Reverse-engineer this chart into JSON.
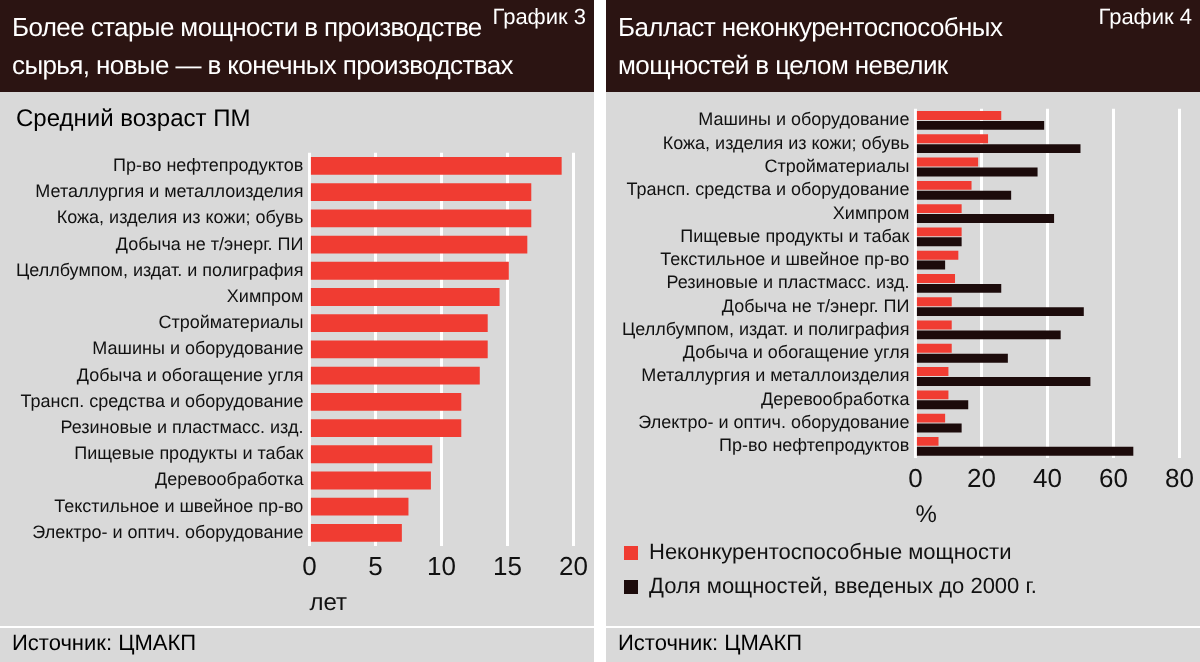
{
  "chart_data": [
    {
      "type": "bar",
      "orientation": "horizontal",
      "title": "Более старые мощности в производстве сырья, новые — в конечных производствах",
      "subtitle": "Средний возраст ПМ",
      "xlabel": "лет",
      "categories": [
        "Пр-во нефтепродуктов",
        "Металлургия и металлоизделия",
        "Кожа, изделия из кожи; обувь",
        "Добыча не т/энерг. ПИ",
        "Целлбумпом, издат. и полиграфия",
        "Химпром",
        "Стройматериалы",
        "Машины и оборудование",
        "Добыча и обогащение угля",
        "Трансп. средства и оборудование",
        "Резиновые и пластмасс. изд.",
        "Пищевые продукты и табак",
        "Деревообработка",
        "Текстильное и швейное пр-во",
        "Электро- и оптич. оборудование"
      ],
      "values": [
        19.1,
        16.8,
        16.8,
        16.5,
        15.1,
        14.4,
        13.5,
        13.5,
        12.9,
        11.5,
        11.5,
        9.3,
        9.2,
        7.5,
        7.0
      ],
      "color": "#f03c32",
      "xlim": [
        0,
        20
      ],
      "xticks": [
        0,
        5,
        10,
        15,
        20
      ],
      "grid": "x",
      "annotations": [
        "График 3",
        "Источник: ЦМАКП"
      ]
    },
    {
      "type": "bar",
      "orientation": "horizontal",
      "title": "Балласт неконкурентоспособных мощностей в целом невелик",
      "xlabel": "%",
      "categories": [
        "Машины и оборудование",
        "Кожа, изделия из кожи; обувь",
        "Стройматериалы",
        "Трансп. средства и оборудование",
        "Химпром",
        "Пищевые продукты и табак",
        "Текстильное и швейное пр-во",
        "Резиновые и пластмасс. изд.",
        "Добыча не т/энерг. ПИ",
        "Целлбумпом, издат. и полиграфия",
        "Добыча и обогащение угля",
        "Металлургия и металлоизделия",
        "Деревообработка",
        "Электро- и оптич. оборудование",
        "Пр-во нефтепродуктов"
      ],
      "series": [
        {
          "name": "Неконкурентоспособные мощности",
          "color": "#f03c32",
          "values": [
            26,
            22,
            19,
            17,
            14,
            14,
            13,
            12,
            11,
            11,
            11,
            10,
            10,
            9,
            7
          ]
        },
        {
          "name": "Доля мощностей, введеных до 2000 г.",
          "color": "#1c0b0b",
          "values": [
            39,
            50,
            37,
            29,
            42,
            14,
            9,
            26,
            51,
            44,
            28,
            53,
            16,
            14,
            66
          ]
        }
      ],
      "xlim": [
        0,
        80
      ],
      "xticks": [
        0,
        20,
        40,
        60,
        80
      ],
      "grid": "x",
      "legend": "bottom",
      "annotations": [
        "График 4",
        "Источник: ЦМАКП"
      ]
    }
  ]
}
